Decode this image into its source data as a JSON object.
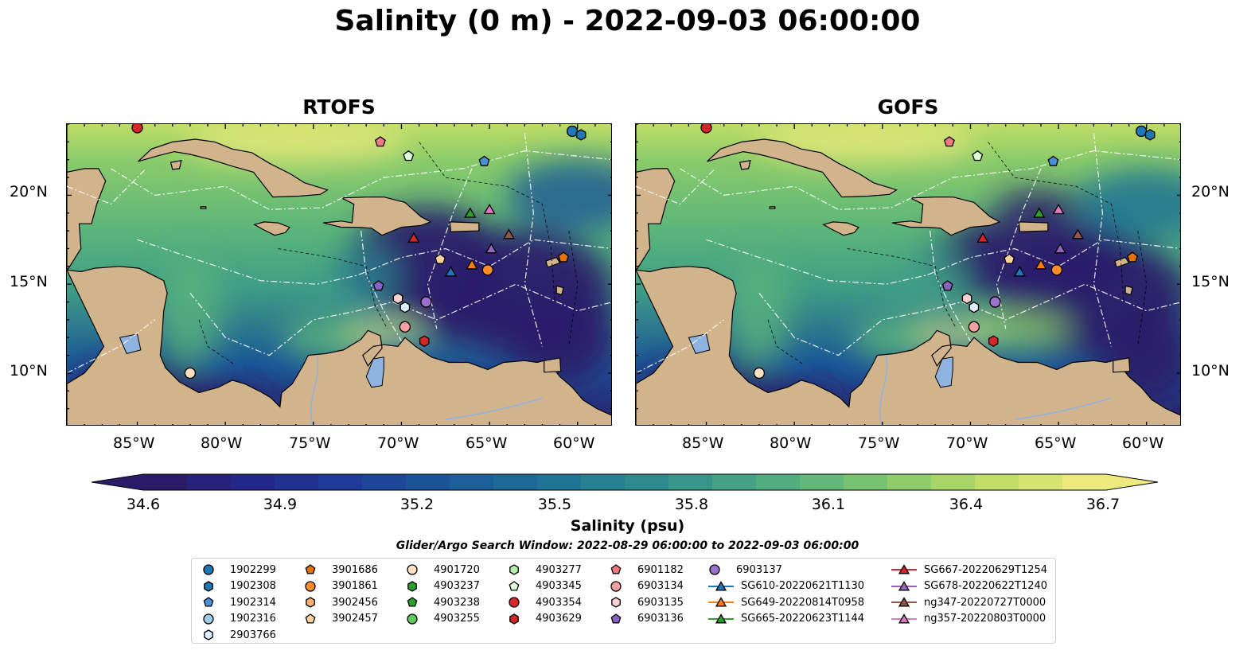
{
  "title": "Salinity (0 m) - 2022-09-03 06:00:00",
  "panels": [
    {
      "title": "RTOFS"
    },
    {
      "title": "GOFS"
    }
  ],
  "axes": {
    "lon_ticks": [
      "85°W",
      "80°W",
      "75°W",
      "70°W",
      "65°W",
      "60°W"
    ],
    "lat_ticks_left": [
      "20°N",
      "15°N",
      "10°N"
    ],
    "lat_ticks_right": [
      "20°N",
      "15°N",
      "10°N"
    ],
    "lon_range": [
      -89,
      -58
    ],
    "lat_range": [
      7,
      24
    ]
  },
  "colorbar": {
    "label": "Salinity (psu)",
    "min": 34.6,
    "max": 36.7,
    "tick_labels": [
      "34.6",
      "34.9",
      "35.2",
      "35.5",
      "35.8",
      "36.1",
      "36.4",
      "36.7"
    ],
    "colors": [
      "#2b1c6a",
      "#23288a",
      "#1f3c99",
      "#1b5698",
      "#1d6e96",
      "#2a8590",
      "#3e9c86",
      "#5bb57a",
      "#8acb6a",
      "#bedd66",
      "#ecea7c"
    ],
    "land_color": "#d2b48c",
    "extend": "both"
  },
  "search_window": "Glider/Argo Search Window: 2022-08-29 06:00:00 to 2022-09-03 06:00:00",
  "legend": {
    "items": [
      {
        "label": "1902299",
        "marker": "circle",
        "color": "#1f77b4"
      },
      {
        "label": "1902308",
        "marker": "hexagon",
        "color": "#1f77b4"
      },
      {
        "label": "1902314",
        "marker": "pentagon",
        "color": "#4a90d9"
      },
      {
        "label": "1902316",
        "marker": "circle",
        "color": "#9ecae9"
      },
      {
        "label": "2903766",
        "marker": "hexagon",
        "color": "#ddeeff"
      },
      {
        "label": "3901686",
        "marker": "pentagon",
        "color": "#e6700a"
      },
      {
        "label": "3901861",
        "marker": "circle",
        "color": "#ff8c2a"
      },
      {
        "label": "3902456",
        "marker": "hexagon",
        "color": "#ffb070"
      },
      {
        "label": "3902457",
        "marker": "pentagon",
        "color": "#ffd0a0"
      },
      {
        "label": "4901720",
        "marker": "circle",
        "color": "#ffe0c0"
      },
      {
        "label": "4903237",
        "marker": "hexagon",
        "color": "#2ca02c"
      },
      {
        "label": "4903238",
        "marker": "pentagon",
        "color": "#2ca02c"
      },
      {
        "label": "4903255",
        "marker": "circle",
        "color": "#5fc95f"
      },
      {
        "label": "4903277",
        "marker": "hexagon",
        "color": "#b8f0b0"
      },
      {
        "label": "4903345",
        "marker": "pentagon",
        "color": "#e0ffd8"
      },
      {
        "label": "4903354",
        "marker": "circle",
        "color": "#d62728"
      },
      {
        "label": "4903629",
        "marker": "hexagon",
        "color": "#d62728"
      },
      {
        "label": "6901182",
        "marker": "pentagon",
        "color": "#f07a80"
      },
      {
        "label": "6903134",
        "marker": "circle",
        "color": "#f4a0a0"
      },
      {
        "label": "6903135",
        "marker": "hexagon",
        "color": "#ffd0d0"
      },
      {
        "label": "6903136",
        "marker": "pentagon",
        "color": "#8a60c0"
      },
      {
        "label": "6903137",
        "marker": "circle",
        "color": "#9b72cb"
      },
      {
        "label": "SG610-20220621T1130",
        "marker": "triangle",
        "color": "#1f77b4"
      },
      {
        "label": "SG649-20220814T0958",
        "marker": "triangle",
        "color": "#ff7f0e"
      },
      {
        "label": "SG665-20220623T1144",
        "marker": "triangle",
        "color": "#2ca02c"
      },
      {
        "label": "SG667-20220629T1254",
        "marker": "triangle",
        "color": "#d62728"
      },
      {
        "label": "SG678-20220622T1240",
        "marker": "triangle",
        "color": "#9467bd"
      },
      {
        "label": "ng347-20220727T0000",
        "marker": "triangle",
        "color": "#8c564b"
      },
      {
        "label": "ng357-20220803T0000",
        "marker": "triangle",
        "color": "#e377c2"
      }
    ]
  },
  "markers": [
    {
      "id": "4903354",
      "lon": -85.0,
      "lat": 23.8
    },
    {
      "id": "1902299",
      "lon": -60.3,
      "lat": 23.6
    },
    {
      "id": "1902308",
      "lon": -59.8,
      "lat": 23.4
    },
    {
      "id": "6901182",
      "lon": -71.2,
      "lat": 23.0
    },
    {
      "id": "4903345",
      "lon": -69.6,
      "lat": 22.2
    },
    {
      "id": "1902314",
      "lon": -65.3,
      "lat": 21.9
    },
    {
      "id": "SG665-20220623T1144",
      "lon": -66.1,
      "lat": 19.0
    },
    {
      "id": "ng357-20220803T0000",
      "lon": -65.0,
      "lat": 19.2
    },
    {
      "id": "ng347-20220727T0000",
      "lon": -63.9,
      "lat": 17.8
    },
    {
      "id": "SG667-20220629T1254",
      "lon": -69.3,
      "lat": 17.6
    },
    {
      "id": "3902457",
      "lon": -67.8,
      "lat": 16.4
    },
    {
      "id": "SG649-20220814T0958",
      "lon": -66.0,
      "lat": 16.1
    },
    {
      "id": "SG678-20220622T1240",
      "lon": -64.9,
      "lat": 17.0
    },
    {
      "id": "SG610-20220621T1130",
      "lon": -67.2,
      "lat": 15.7
    },
    {
      "id": "3901861",
      "lon": -65.1,
      "lat": 15.8
    },
    {
      "id": "3901686",
      "lon": -60.8,
      "lat": 16.5
    },
    {
      "id": "6903136",
      "lon": -71.3,
      "lat": 14.9
    },
    {
      "id": "6903135",
      "lon": -70.2,
      "lat": 14.2
    },
    {
      "id": "2903766",
      "lon": -69.8,
      "lat": 13.7
    },
    {
      "id": "6903137",
      "lon": -68.6,
      "lat": 14.0
    },
    {
      "id": "6903134",
      "lon": -69.8,
      "lat": 12.6
    },
    {
      "id": "4903629",
      "lon": -68.7,
      "lat": 11.8
    },
    {
      "id": "4901720",
      "lon": -82.0,
      "lat": 10.0
    }
  ]
}
